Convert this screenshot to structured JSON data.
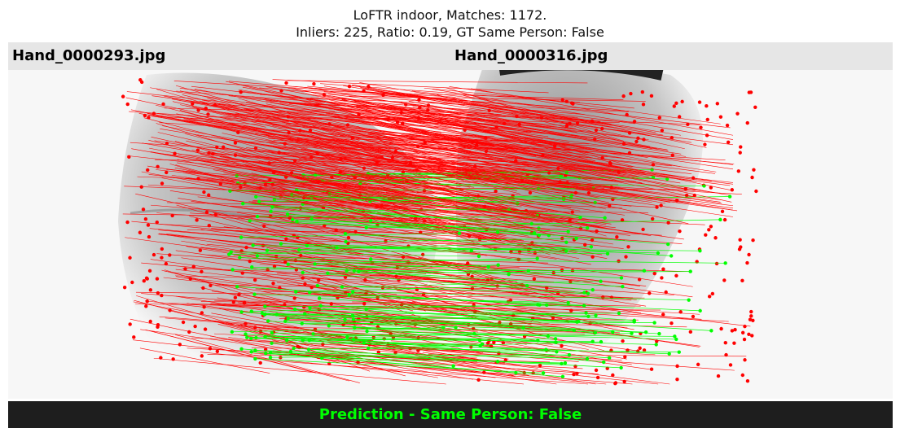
{
  "title": {
    "line1": "LoFTR indoor, Matches: 1172.",
    "line2": "Inliers: 225, Ratio: 0.19, GT Same Person: False"
  },
  "images": {
    "left_name": "Hand_0000293.jpg",
    "right_name": "Hand_0000316.jpg"
  },
  "prediction": {
    "text": "Prediction - Same Person: False",
    "color": "#00ff00"
  },
  "colors": {
    "outlier": "#ff0000",
    "inlier": "#00ff00",
    "banner_bg": "#e6e6e6",
    "prediction_bg": "#1e1e1e"
  }
}
